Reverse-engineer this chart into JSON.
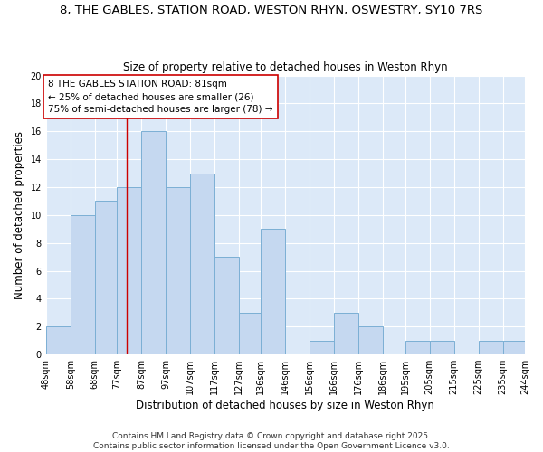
{
  "title_line1": "8, THE GABLES, STATION ROAD, WESTON RHYN, OSWESTRY, SY10 7RS",
  "title_line2": "Size of property relative to detached houses in Weston Rhyn",
  "xlabel": "Distribution of detached houses by size in Weston Rhyn",
  "ylabel": "Number of detached properties",
  "bin_edges": [
    48,
    58,
    68,
    77,
    87,
    97,
    107,
    117,
    127,
    136,
    146,
    156,
    166,
    176,
    186,
    195,
    205,
    215,
    225,
    235,
    244
  ],
  "counts": [
    2,
    10,
    11,
    12,
    16,
    12,
    13,
    7,
    3,
    9,
    0,
    1,
    3,
    2,
    0,
    1,
    1,
    0,
    1,
    1
  ],
  "bar_color": "#c5d8f0",
  "bar_edge_color": "#7bafd4",
  "property_size": 81,
  "red_line_color": "#cc0000",
  "annotation_text": "8 THE GABLES STATION ROAD: 81sqm\n← 25% of detached houses are smaller (26)\n75% of semi-detached houses are larger (78) →",
  "annotation_box_color": "#ffffff",
  "annotation_box_edge": "#cc0000",
  "ylim": [
    0,
    20
  ],
  "yticks": [
    0,
    2,
    4,
    6,
    8,
    10,
    12,
    14,
    16,
    18,
    20
  ],
  "tick_labels": [
    "48sqm",
    "58sqm",
    "68sqm",
    "77sqm",
    "87sqm",
    "97sqm",
    "107sqm",
    "117sqm",
    "127sqm",
    "136sqm",
    "146sqm",
    "156sqm",
    "166sqm",
    "176sqm",
    "186sqm",
    "195sqm",
    "205sqm",
    "215sqm",
    "225sqm",
    "235sqm",
    "244sqm"
  ],
  "footer_text": "Contains HM Land Registry data © Crown copyright and database right 2025.\nContains public sector information licensed under the Open Government Licence v3.0.",
  "fig_bg_color": "#ffffff",
  "plot_bg_color": "#dce9f8",
  "grid_color": "#ffffff",
  "title_fontsize": 9.5,
  "subtitle_fontsize": 8.5,
  "axis_label_fontsize": 8.5,
  "tick_fontsize": 7,
  "footer_fontsize": 6.5,
  "annot_fontsize": 7.5
}
